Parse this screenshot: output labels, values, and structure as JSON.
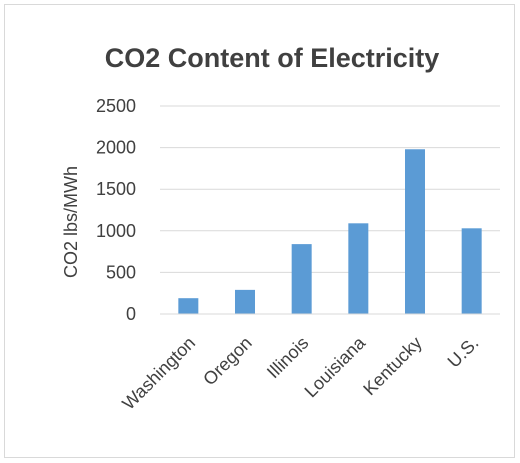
{
  "chart_data": {
    "type": "bar",
    "title": "CO2 Content of Electricity",
    "xlabel": "",
    "ylabel": "CO2 lbs/MWh",
    "categories": [
      "Washington",
      "Oregon",
      "Illinois",
      "Louisiana",
      "Kentucky",
      "U.S."
    ],
    "values": [
      190,
      290,
      840,
      1090,
      1980,
      1030
    ],
    "ylim": [
      0,
      2500
    ],
    "yticks": [
      "0",
      "500",
      "1000",
      "1500",
      "2000",
      "2500"
    ],
    "grid": true,
    "legend": "none",
    "bar_color": "#5b9bd5",
    "grid_color": "#d9d9d9",
    "text_color": "#404040"
  }
}
